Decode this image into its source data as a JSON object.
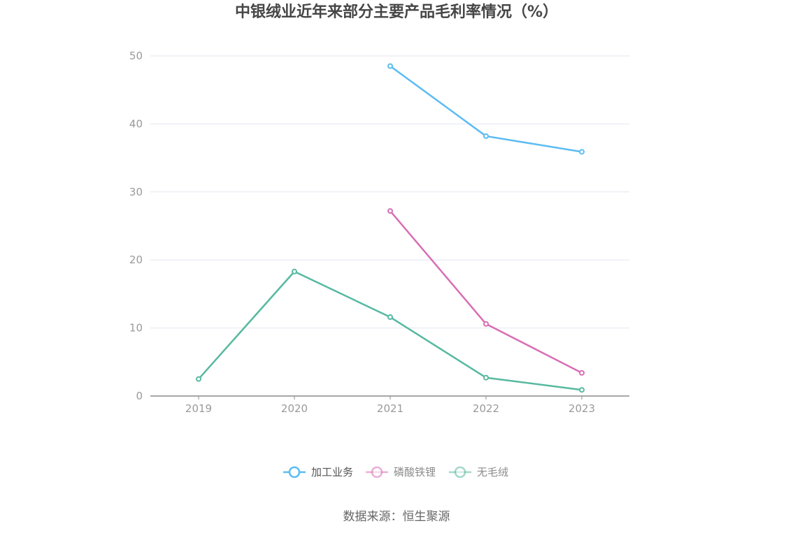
{
  "title": "中银绒业近年来部分主要产品毛利率情况（%）",
  "source": "数据来源：恒生聚源",
  "chart_data": {
    "type": "line",
    "title": "中银绒业近年来部分主要产品毛利率情况（%）",
    "x": [
      "2019",
      "2020",
      "2021",
      "2022",
      "2023"
    ],
    "ylim": [
      0,
      50
    ],
    "yticks": [
      "0",
      "10",
      "20",
      "30",
      "40",
      "50"
    ],
    "grid": true,
    "legend_position": "bottom",
    "series": [
      {
        "name": "加工业务",
        "color": "#5bbcf2",
        "values": [
          null,
          null,
          48.5,
          38.2,
          35.9
        ]
      },
      {
        "name": "磷酸铁锂",
        "color": "#d86eb4",
        "values": [
          null,
          null,
          27.2,
          10.6,
          3.4
        ]
      },
      {
        "name": "无毛绒",
        "color": "#57b9a0",
        "values": [
          2.5,
          18.3,
          11.6,
          2.7,
          0.9
        ]
      }
    ]
  }
}
